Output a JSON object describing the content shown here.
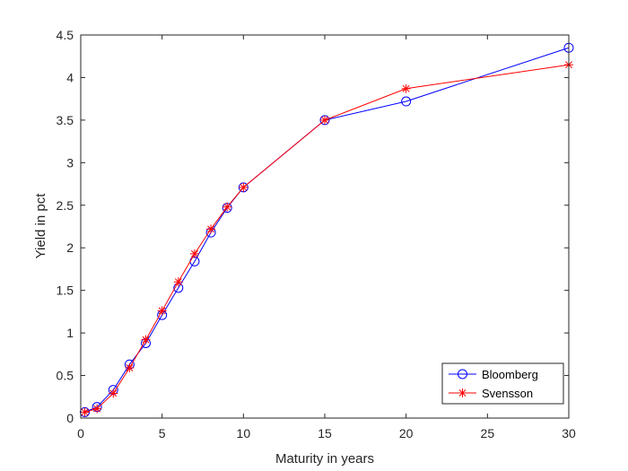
{
  "chart_data": {
    "type": "line",
    "title": "",
    "xlabel": "Maturity in years",
    "ylabel": "Yield in pct",
    "xlim": [
      0,
      30
    ],
    "ylim": [
      0,
      4.5
    ],
    "xticks": [
      0,
      5,
      10,
      15,
      20,
      25,
      30
    ],
    "xtick_labels": [
      "0",
      "5",
      "10",
      "15",
      "20",
      "25",
      "30"
    ],
    "yticks": [
      0,
      0.5,
      1,
      1.5,
      2,
      2.5,
      3,
      3.5,
      4,
      4.5
    ],
    "ytick_labels": [
      "0",
      "0.5",
      "1",
      "1.5",
      "2",
      "2.5",
      "3",
      "3.5",
      "4",
      "4.5"
    ],
    "grid": false,
    "legend_position": "bottom-right",
    "series": [
      {
        "name": "Bloomberg",
        "color": "#0000ff",
        "marker": "circle",
        "x": [
          0.25,
          1,
          2,
          3,
          4,
          5,
          6,
          7,
          8,
          9,
          10,
          15,
          20,
          30
        ],
        "y": [
          0.07,
          0.13,
          0.33,
          0.63,
          0.88,
          1.21,
          1.53,
          1.84,
          2.18,
          2.47,
          2.71,
          3.5,
          3.72,
          4.35
        ]
      },
      {
        "name": "Svensson",
        "color": "#ff0000",
        "marker": "asterisk",
        "x": [
          0.25,
          1,
          2,
          3,
          4,
          5,
          6,
          7,
          8,
          9,
          10,
          15,
          20,
          30
        ],
        "y": [
          0.07,
          0.11,
          0.29,
          0.59,
          0.92,
          1.26,
          1.6,
          1.93,
          2.22,
          2.48,
          2.71,
          3.5,
          3.87,
          4.15
        ]
      }
    ]
  }
}
